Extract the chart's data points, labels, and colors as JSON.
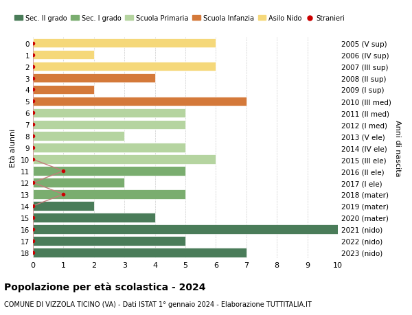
{
  "ages": [
    18,
    17,
    16,
    15,
    14,
    13,
    12,
    11,
    10,
    9,
    8,
    7,
    6,
    5,
    4,
    3,
    2,
    1,
    0
  ],
  "right_labels": [
    "2005 (V sup)",
    "2006 (IV sup)",
    "2007 (III sup)",
    "2008 (II sup)",
    "2009 (I sup)",
    "2010 (III med)",
    "2011 (II med)",
    "2012 (I med)",
    "2013 (V ele)",
    "2014 (IV ele)",
    "2015 (III ele)",
    "2016 (II ele)",
    "2017 (I ele)",
    "2018 (mater)",
    "2019 (mater)",
    "2020 (mater)",
    "2021 (nido)",
    "2022 (nido)",
    "2023 (nido)"
  ],
  "bar_values": [
    7,
    5,
    10,
    4,
    2,
    5,
    3,
    5,
    6,
    5,
    3,
    5,
    5,
    7,
    2,
    4,
    6,
    2,
    6
  ],
  "bar_colors": [
    "#4a7c59",
    "#4a7c59",
    "#4a7c59",
    "#4a7c59",
    "#4a7c59",
    "#7aad6f",
    "#7aad6f",
    "#7aad6f",
    "#b5d4a0",
    "#b5d4a0",
    "#b5d4a0",
    "#b5d4a0",
    "#b5d4a0",
    "#d4793a",
    "#d4793a",
    "#d4793a",
    "#f5d87a",
    "#f5d87a",
    "#f5d87a"
  ],
  "stranieri_values": [
    0,
    0,
    0,
    0,
    0,
    1,
    0,
    1,
    0,
    0,
    0,
    0,
    0,
    0,
    0,
    0,
    0,
    0,
    0
  ],
  "stranieri_color": "#cc0000",
  "line_color": "#c47a7a",
  "title": "Popolazione per età scolastica - 2024",
  "subtitle": "COMUNE DI VIZZOLA TICINO (VA) - Dati ISTAT 1° gennaio 2024 - Elaborazione TUTTITALIA.IT",
  "ylabel_left": "Età alunni",
  "ylabel_right": "Anni di nascita",
  "xlim": [
    0,
    10
  ],
  "background_color": "#ffffff",
  "grid_color": "#cccccc",
  "legend_items": [
    {
      "label": "Sec. II grado",
      "color": "#4a7c59"
    },
    {
      "label": "Sec. I grado",
      "color": "#7aad6f"
    },
    {
      "label": "Scuola Primaria",
      "color": "#b5d4a0"
    },
    {
      "label": "Scuola Infanzia",
      "color": "#d4793a"
    },
    {
      "label": "Asilo Nido",
      "color": "#f5d87a"
    },
    {
      "label": "Stranieri",
      "color": "#cc0000"
    }
  ]
}
